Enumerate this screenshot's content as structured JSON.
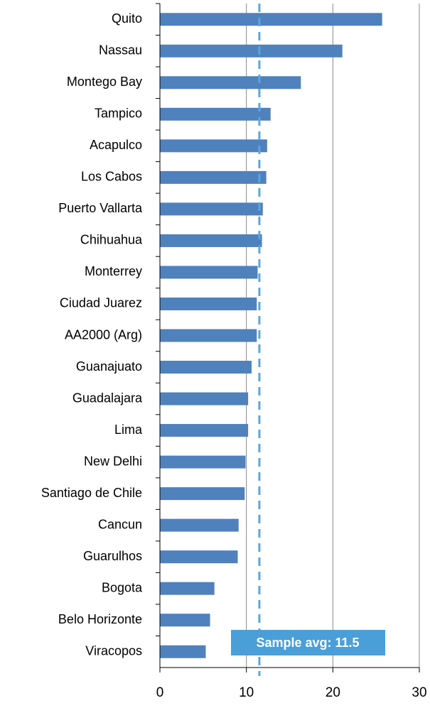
{
  "chart_data": {
    "type": "bar",
    "orientation": "horizontal",
    "categories": [
      "Quito",
      "Nassau",
      "Montego Bay",
      "Tampico",
      "Acapulco",
      "Los Cabos",
      "Puerto Vallarta",
      "Chihuahua",
      "Monterrey",
      "Ciudad Juarez",
      "AA2000 (Arg)",
      "Guanajuato",
      "Guadalajara",
      "Lima",
      "New Delhi",
      "Santiago de Chile",
      "Cancun",
      "Guarulhos",
      "Bogota",
      "Belo Horizonte",
      "Viracopos"
    ],
    "values": [
      25.7,
      21.1,
      16.3,
      12.8,
      12.4,
      12.3,
      11.9,
      11.8,
      11.3,
      11.2,
      11.2,
      10.6,
      10.2,
      10.2,
      9.9,
      9.8,
      9.1,
      9.0,
      6.3,
      5.8,
      5.3
    ],
    "color": "#4f81bd",
    "xlim": [
      0,
      30
    ],
    "xticks": [
      0,
      10,
      20,
      30
    ],
    "grid": true,
    "average": 11.5,
    "average_color": "#5aa6e0",
    "annotation": "Sample avg: 11.5"
  }
}
